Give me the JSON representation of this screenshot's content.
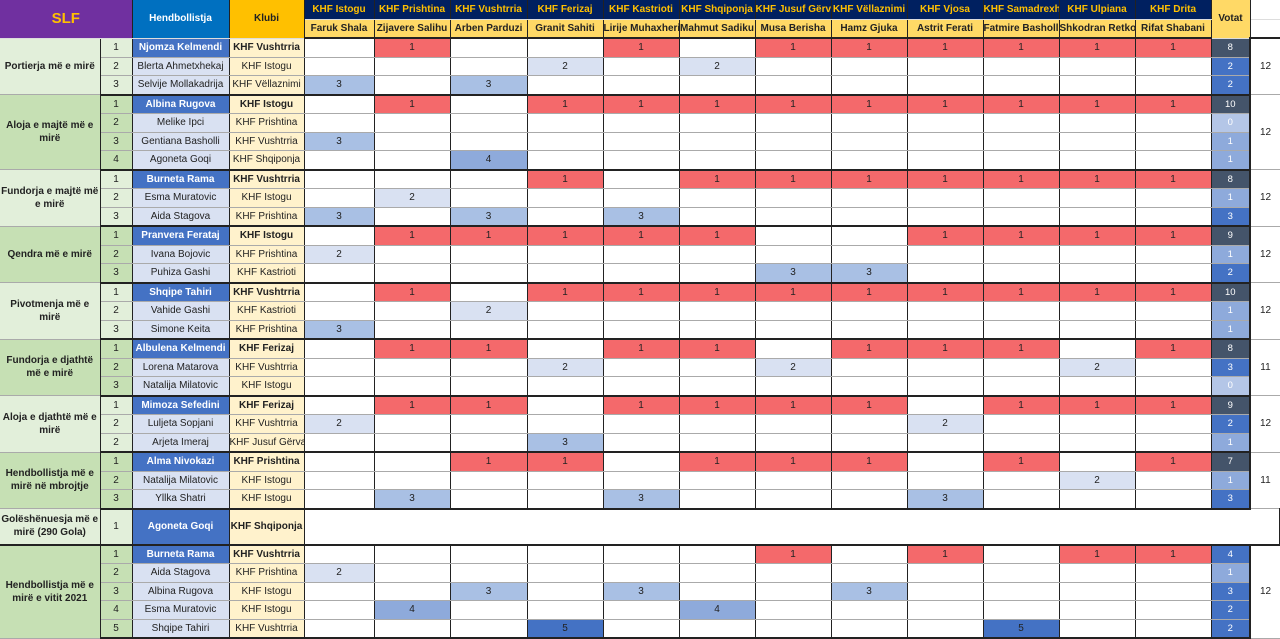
{
  "header": {
    "logo": "SLF",
    "player_col": "Hendbollistja",
    "club_col": "Klubi",
    "votes_col": "Votat",
    "juries": [
      {
        "club": "KHF Istogu",
        "judge": "Faruk Shala"
      },
      {
        "club": "KHF Prishtina",
        "judge": "Zijavere Salihu"
      },
      {
        "club": "KHF Vushtrria",
        "judge": "Arben Parduzi"
      },
      {
        "club": "KHF Ferizaj",
        "judge": "Granit Sahiti"
      },
      {
        "club": "KHF Kastrioti",
        "judge": "Lirije Muhaxheri"
      },
      {
        "club": "KHF Shqiponja",
        "judge": "Mahmut Sadiku"
      },
      {
        "club": "KHF Jusuf Gërvalla",
        "judge": "Musa Berisha"
      },
      {
        "club": "KHF Vëllaznimi",
        "judge": "Hamz Gjuka"
      },
      {
        "club": "KHF Vjosa",
        "judge": "Astrit Ferati"
      },
      {
        "club": "KHF Samadrexha",
        "judge": "Fatmire Basholli"
      },
      {
        "club": "KHF Ulpiana",
        "judge": "Shkodran Retkoceri"
      },
      {
        "club": "KHF Drita",
        "judge": "Rifat Shabani"
      }
    ]
  },
  "colors": {
    "vote_1": "#f4696b",
    "vote_2": "#d9e1f2",
    "vote_3": "#a9c0e4",
    "vote_4": "#8eaadb",
    "vote_5": "#4472c4",
    "winner": "#4472c4"
  },
  "categories": [
    {
      "title": "Portierja më e mirë",
      "total": "12",
      "rows": [
        {
          "rank": "1",
          "player": "Njomza Kelmendi",
          "club": "KHF Vushtrria",
          "votes": [
            null,
            1,
            null,
            null,
            1,
            null,
            1,
            1,
            1,
            1,
            1,
            1
          ],
          "count": "8"
        },
        {
          "rank": "2",
          "player": "Blerta Ahmetxhekaj",
          "club": "KHF Istogu",
          "votes": [
            null,
            null,
            null,
            2,
            null,
            2,
            null,
            null,
            null,
            null,
            null,
            null
          ],
          "count": "2"
        },
        {
          "rank": "3",
          "player": "Selvije Mollakadrija",
          "club": "KHF Vëllaznimi",
          "votes": [
            3,
            null,
            3,
            null,
            null,
            null,
            null,
            null,
            null,
            null,
            null,
            null
          ],
          "count": "2"
        }
      ]
    },
    {
      "title": "Aloja e majtë më e mirë",
      "total": "12",
      "rows": [
        {
          "rank": "1",
          "player": "Albina Rugova",
          "club": "KHF Istogu",
          "votes": [
            null,
            1,
            null,
            1,
            1,
            1,
            1,
            1,
            1,
            1,
            1,
            1
          ],
          "count": "10"
        },
        {
          "rank": "2",
          "player": "Melike Ipci",
          "club": "KHF Prishtina",
          "votes": [
            null,
            null,
            null,
            null,
            null,
            null,
            null,
            null,
            null,
            null,
            null,
            null
          ],
          "count": "0"
        },
        {
          "rank": "3",
          "player": "Gentiana Basholli",
          "club": "KHF Vushtrria",
          "votes": [
            3,
            null,
            null,
            null,
            null,
            null,
            null,
            null,
            null,
            null,
            null,
            null
          ],
          "count": "1"
        },
        {
          "rank": "4",
          "player": "Agoneta Goqi",
          "club": "KHF Shqiponja",
          "votes": [
            null,
            null,
            4,
            null,
            null,
            null,
            null,
            null,
            null,
            null,
            null,
            null
          ],
          "count": "1"
        }
      ]
    },
    {
      "title": "Fundorja e majtë më e mirë",
      "total": "12",
      "rows": [
        {
          "rank": "1",
          "player": "Burneta Rama",
          "club": "KHF Vushtrria",
          "votes": [
            null,
            null,
            null,
            1,
            null,
            1,
            1,
            1,
            1,
            1,
            1,
            1
          ],
          "count": "8"
        },
        {
          "rank": "2",
          "player": "Esma Muratovic",
          "club": "KHF Istogu",
          "votes": [
            null,
            2,
            null,
            null,
            null,
            null,
            null,
            null,
            null,
            null,
            null,
            null
          ],
          "count": "1"
        },
        {
          "rank": "3",
          "player": "Aida Stagova",
          "club": "KHF Prishtina",
          "votes": [
            3,
            null,
            3,
            null,
            3,
            null,
            null,
            null,
            null,
            null,
            null,
            null
          ],
          "count": "3"
        }
      ]
    },
    {
      "title": "Qendra më e mirë",
      "total": "12",
      "rows": [
        {
          "rank": "1",
          "player": "Pranvera Ferataj",
          "club": "KHF Istogu",
          "votes": [
            null,
            1,
            1,
            1,
            1,
            1,
            null,
            null,
            1,
            1,
            1,
            1
          ],
          "count": "9"
        },
        {
          "rank": "2",
          "player": "Ivana Bojovic",
          "club": "KHF Prishtina",
          "votes": [
            2,
            null,
            null,
            null,
            null,
            null,
            null,
            null,
            null,
            null,
            null,
            null
          ],
          "count": "1"
        },
        {
          "rank": "3",
          "player": "Puhiza Gashi",
          "club": "KHF Kastrioti",
          "votes": [
            null,
            null,
            null,
            null,
            null,
            null,
            3,
            3,
            null,
            null,
            null,
            null
          ],
          "count": "2"
        }
      ]
    },
    {
      "title": "Pivotmenja më e mirë",
      "total": "12",
      "rows": [
        {
          "rank": "1",
          "player": "Shqipe Tahiri",
          "club": "KHF Vushtrria",
          "votes": [
            null,
            1,
            null,
            1,
            1,
            1,
            1,
            1,
            1,
            1,
            1,
            1
          ],
          "count": "10"
        },
        {
          "rank": "2",
          "player": "Vahide Gashi",
          "club": "KHF Kastrioti",
          "votes": [
            null,
            null,
            2,
            null,
            null,
            null,
            null,
            null,
            null,
            null,
            null,
            null
          ],
          "count": "1"
        },
        {
          "rank": "3",
          "player": "Simone Keita",
          "club": "KHF Prishtina",
          "votes": [
            3,
            null,
            null,
            null,
            null,
            null,
            null,
            null,
            null,
            null,
            null,
            null
          ],
          "count": "1"
        }
      ]
    },
    {
      "title": "Fundorja e djathtë më e mirë",
      "total": "11",
      "rows": [
        {
          "rank": "1",
          "player": "Albulena Kelmendi",
          "club": "KHF Ferizaj",
          "votes": [
            null,
            1,
            1,
            null,
            1,
            1,
            null,
            1,
            1,
            1,
            null,
            1
          ],
          "count": "8"
        },
        {
          "rank": "2",
          "player": "Lorena Matarova",
          "club": "KHF Vushtrria",
          "votes": [
            null,
            null,
            null,
            2,
            null,
            null,
            2,
            null,
            null,
            null,
            2,
            null
          ],
          "count": "3"
        },
        {
          "rank": "3",
          "player": "Natalija Milatovic",
          "club": "KHF Istogu",
          "votes": [
            null,
            null,
            null,
            null,
            null,
            null,
            null,
            null,
            null,
            null,
            null,
            null
          ],
          "count": "0"
        }
      ]
    },
    {
      "title": "Aloja e djathtë më e mirë",
      "total": "12",
      "rows": [
        {
          "rank": "1",
          "player": "Mimoza Sefedini",
          "club": "KHF Ferizaj",
          "votes": [
            null,
            1,
            1,
            null,
            1,
            1,
            1,
            1,
            null,
            1,
            1,
            1
          ],
          "count": "9"
        },
        {
          "rank": "2",
          "player": "Luljeta Sopjani",
          "club": "KHF Vushtrria",
          "votes": [
            2,
            null,
            null,
            null,
            null,
            null,
            null,
            null,
            2,
            null,
            null,
            null
          ],
          "count": "2"
        },
        {
          "rank": "2",
          "player": "Arjeta Imeraj",
          "club": "KHF Jusuf Gërvalla",
          "votes": [
            null,
            null,
            null,
            3,
            null,
            null,
            null,
            null,
            null,
            null,
            null,
            null
          ],
          "count": "1"
        }
      ]
    },
    {
      "title": "Hendbollistja më  e mirë  në mbrojtje",
      "total": "11",
      "rows": [
        {
          "rank": "1",
          "player": "Alma Nivokazi",
          "club": "KHF Prishtina",
          "votes": [
            null,
            null,
            1,
            1,
            null,
            1,
            1,
            1,
            null,
            1,
            null,
            1
          ],
          "count": "7"
        },
        {
          "rank": "2",
          "player": "Natalija Milatovic",
          "club": "KHF Istogu",
          "votes": [
            null,
            null,
            null,
            null,
            null,
            null,
            null,
            null,
            null,
            null,
            2,
            null
          ],
          "count": "1"
        },
        {
          "rank": "3",
          "player": "Yllka Shatri",
          "club": "KHF Istogu",
          "votes": [
            null,
            3,
            null,
            null,
            3,
            null,
            null,
            null,
            3,
            null,
            null,
            null
          ],
          "count": "3"
        }
      ]
    },
    {
      "title": "Golëshënuesja më e mirë (290 Gola)",
      "special": true,
      "rows": [
        {
          "rank": "1",
          "player": "Agoneta Goqi",
          "club": "KHF Shqiponja"
        }
      ]
    },
    {
      "title": "Hendbollistja më e mirë e vitit 2021",
      "total": "12",
      "rows": [
        {
          "rank": "1",
          "player": "Burneta Rama",
          "club": "KHF Vushtrria",
          "votes": [
            null,
            null,
            null,
            null,
            null,
            null,
            1,
            null,
            1,
            null,
            1,
            1
          ],
          "count": "4"
        },
        {
          "rank": "2",
          "player": "Aida Stagova",
          "club": "KHF Prishtina",
          "votes": [
            2,
            null,
            null,
            null,
            null,
            null,
            null,
            null,
            null,
            null,
            null,
            null
          ],
          "count": "1"
        },
        {
          "rank": "3",
          "player": "Albina Rugova",
          "club": "KHF Istogu",
          "votes": [
            null,
            null,
            3,
            null,
            3,
            null,
            null,
            3,
            null,
            null,
            null,
            null
          ],
          "count": "3"
        },
        {
          "rank": "4",
          "player": "Esma Muratovic",
          "club": "KHF Istogu",
          "votes": [
            null,
            4,
            null,
            null,
            null,
            4,
            null,
            null,
            null,
            null,
            null,
            null
          ],
          "count": "2"
        },
        {
          "rank": "5",
          "player": "Shqipe Tahiri",
          "club": "KHF Vushtrria",
          "votes": [
            null,
            null,
            null,
            5,
            null,
            null,
            null,
            null,
            null,
            5,
            null,
            null
          ],
          "count": "2"
        }
      ]
    }
  ]
}
